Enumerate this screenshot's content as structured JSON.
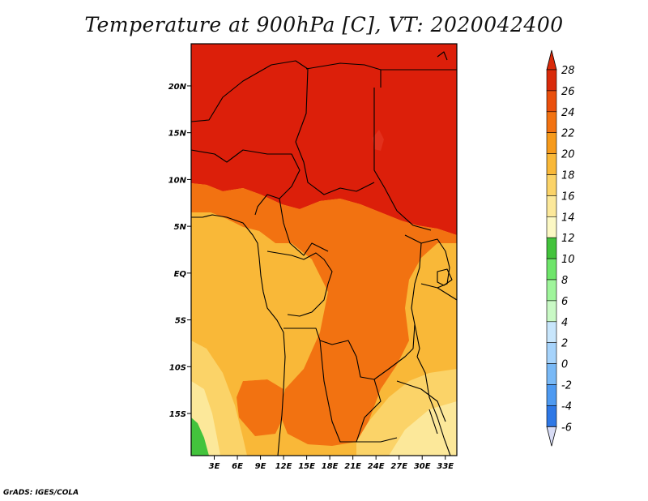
{
  "title": "Temperature at 900hPa [C], VT: 2020042400",
  "credit": "GrADS: IGES/COLA",
  "map": {
    "lon_range": [
      0,
      34.5
    ],
    "lat_range": [
      -19.5,
      24.5
    ],
    "lat_ticks": [
      {
        "value": 20,
        "label": "20N"
      },
      {
        "value": 15,
        "label": "15N"
      },
      {
        "value": 10,
        "label": "10N"
      },
      {
        "value": 5,
        "label": "5N"
      },
      {
        "value": 0,
        "label": "EQ"
      },
      {
        "value": -5,
        "label": "5S"
      },
      {
        "value": -10,
        "label": "10S"
      },
      {
        "value": -15,
        "label": "15S"
      }
    ],
    "lon_ticks": [
      {
        "value": 3,
        "label": "3E"
      },
      {
        "value": 6,
        "label": "6E"
      },
      {
        "value": 9,
        "label": "9E"
      },
      {
        "value": 12,
        "label": "12E"
      },
      {
        "value": 15,
        "label": "15E"
      },
      {
        "value": 18,
        "label": "18E"
      },
      {
        "value": 21,
        "label": "21E"
      },
      {
        "value": 24,
        "label": "24E"
      },
      {
        "value": 27,
        "label": "27E"
      },
      {
        "value": 30,
        "label": "30E"
      },
      {
        "value": 33,
        "label": "33E"
      }
    ]
  },
  "colorbar": {
    "labels": [
      "28",
      "26",
      "24",
      "22",
      "20",
      "18",
      "16",
      "14",
      "12",
      "10",
      "8",
      "6",
      "4",
      "2",
      "0",
      "-2",
      "-4",
      "-6"
    ],
    "colors": [
      "#d92a0a",
      "#ea4f0c",
      "#f27211",
      "#f69a1b",
      "#f9b838",
      "#fbd368",
      "#fce89a",
      "#fcf8c4",
      "#43c33c",
      "#6ee56a",
      "#9ff59b",
      "#c9f9c5",
      "#c8e6fc",
      "#a6d3fb",
      "#79b9f6",
      "#4e9af1",
      "#2e78e6",
      "#1958d8",
      "#0d34b8",
      "#1a1d80"
    ],
    "top_color": "#d92a0a",
    "bottom_color": "#d8dcf5"
  },
  "fields": {
    "sahel_hot": "#dc1f0a",
    "warm": "#f27211",
    "mid": "#f9b838",
    "cool": "#fbd368",
    "coolest": "#fce89a",
    "land_green": "#43c33c"
  }
}
